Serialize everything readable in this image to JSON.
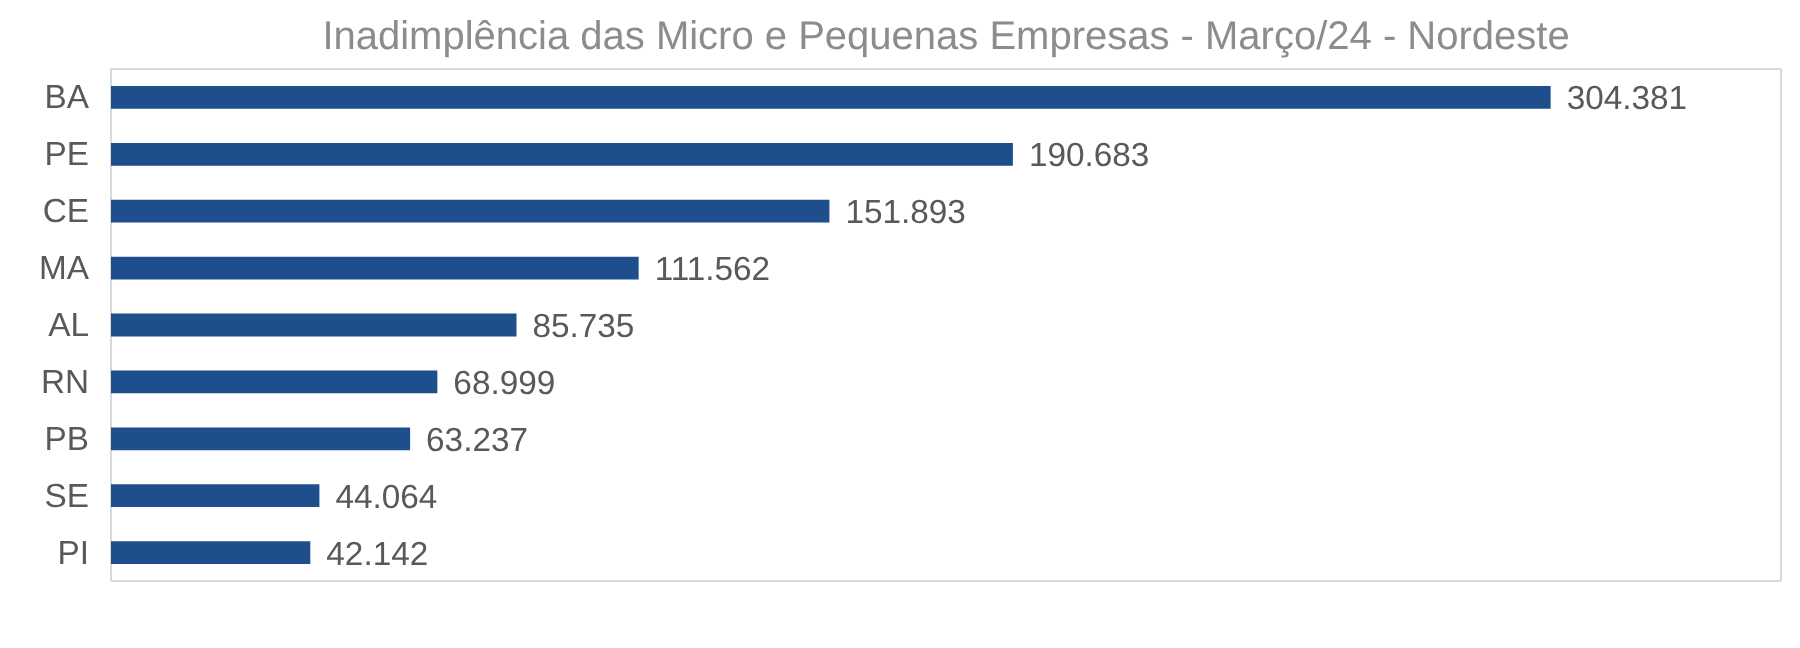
{
  "chart_data": {
    "type": "bar",
    "orientation": "horizontal",
    "title": "Inadimplência das Micro e Pequenas Empresas - Março/24 - Nordeste",
    "categories": [
      "BA",
      "PE",
      "CE",
      "MA",
      "AL",
      "RN",
      "PB",
      "SE",
      "PI"
    ],
    "values": [
      304381,
      190683,
      151893,
      111562,
      85735,
      68999,
      63237,
      44064,
      42142
    ],
    "value_labels": [
      "304.381",
      "190.683",
      "151.893",
      "111.562",
      "85.735",
      "68.999",
      "63.237",
      "44.064",
      "42.142"
    ],
    "color": "#1f4e8c",
    "grid": false
  }
}
